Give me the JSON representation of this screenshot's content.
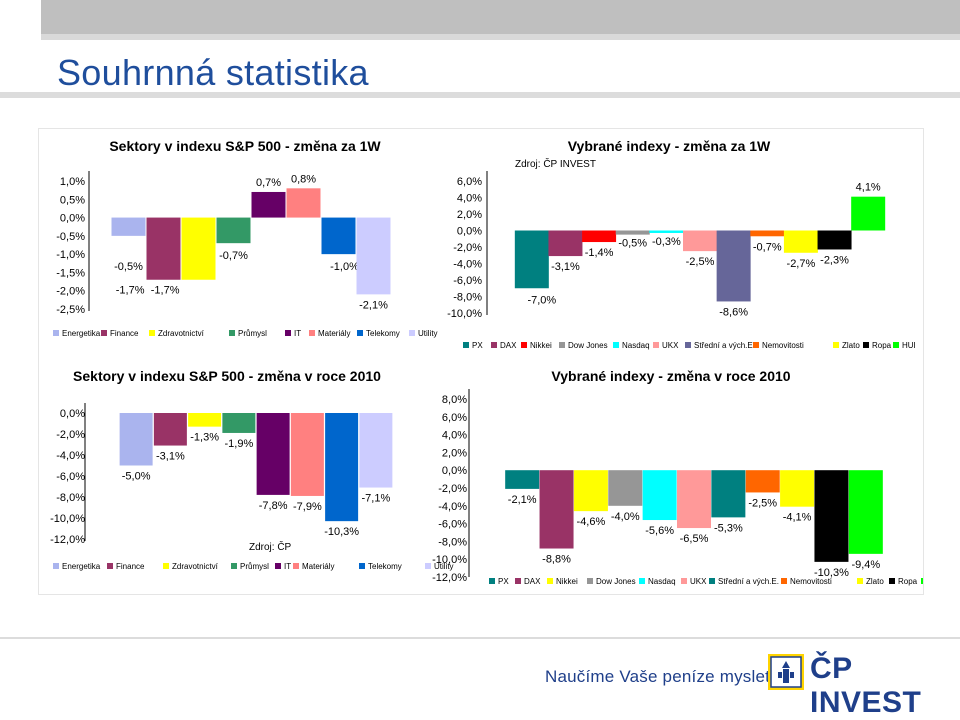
{
  "page": {
    "title": "Souhrnná statistika",
    "footer_slogan": "Naučíme Vaše peníze myslet",
    "logo_text": "ČP INVEST"
  },
  "chart_data": [
    {
      "id": "sp500-1w",
      "type": "bar",
      "title": "Sektory v indexu S&P 500 - změna za 1W",
      "categories": [
        "Energetika",
        "Finance",
        "Zdravotnictví",
        "Průmysl",
        "IT",
        "Materiály",
        "Telekomy",
        "Utility"
      ],
      "values": [
        -0.5,
        -1.7,
        -1.7,
        -0.7,
        0.7,
        0.8,
        -1.0,
        -2.1
      ],
      "labels": [
        "-0,5%",
        "-1,7%",
        "-1,7%",
        "-0,7%",
        "0,7%",
        "0,8%",
        "-1,0%",
        "-2,1%"
      ],
      "colors": [
        "#aab4ee",
        "#993366",
        "#ffff00",
        "#339966",
        "#660066",
        "#ff8080",
        "#0066cc",
        "#ccccff"
      ],
      "yticks": [
        "1,0%",
        "0,5%",
        "0,0%",
        "-0,5%",
        "-1,0%",
        "-1,5%",
        "-2,0%",
        "-2,5%"
      ],
      "ylim": [
        -2.5,
        1.0
      ],
      "legend": [
        "Energetika",
        "Finance",
        "Zdravotnictví",
        "Průmysl",
        "IT",
        "Materiály",
        "Telekomy",
        "Utility"
      ],
      "legend_position": "bottom"
    },
    {
      "id": "indexes-1w",
      "type": "bar",
      "title": "Vybrané indexy - změna za 1W",
      "subtitle": "Zdroj: ČP INVEST",
      "categories": [
        "PX",
        "DAX",
        "Nikkei",
        "Dow Jones",
        "Nasdaq",
        "UKX",
        "Střední a vých.E.",
        "Nemovitosti",
        "Zlato",
        "Ropa",
        "HUI"
      ],
      "values": [
        -7.0,
        -3.1,
        -1.4,
        -0.5,
        -0.3,
        -2.5,
        -8.6,
        -0.7,
        -2.7,
        -2.3,
        4.1
      ],
      "labels": [
        "-7,0%",
        "-3,1%",
        "-1,4%",
        "-0,5%",
        "-0,3%",
        "-2,5%",
        "-8,6%",
        "-0,7%",
        "-2,7%",
        "-2,3%",
        "4,1%"
      ],
      "colors": [
        "#008080",
        "#993366",
        "#ff0000",
        "#969696",
        "#00ffff",
        "#ff9999",
        "#666699",
        "#ff6600",
        "#ffff00",
        "#000000",
        "#00ff00"
      ],
      "yticks": [
        "6,0%",
        "4,0%",
        "2,0%",
        "0,0%",
        "-2,0%",
        "-4,0%",
        "-6,0%",
        "-8,0%",
        "-10,0%"
      ],
      "ylim": [
        -10.0,
        6.0
      ],
      "legend": [
        "PX",
        "DAX",
        "Nikkei",
        "Dow Jones",
        "Nasdaq",
        "UKX",
        "Střední a vých.E.",
        "Nemovitosti",
        "Zlato",
        "Ropa",
        "HUI"
      ],
      "legend_position": "bottom"
    },
    {
      "id": "sp500-2010",
      "type": "bar",
      "title": "Sektory v indexu S&P 500 - změna v roce 2010",
      "subtitle": "Zdroj: ČP",
      "categories": [
        "Energetika",
        "Finance",
        "Zdravotnictví",
        "Průmysl",
        "IT",
        "Materiály",
        "Telekomy",
        "Utility"
      ],
      "values": [
        -5.0,
        -3.1,
        -1.3,
        -1.9,
        -7.8,
        -7.9,
        -10.3,
        -7.1
      ],
      "labels": [
        "-5,0%",
        "-3,1%",
        "-1,3%",
        "-1,9%",
        "-7,8%",
        "-7,9%",
        "-10,3%",
        "-7,1%"
      ],
      "colors": [
        "#aab4ee",
        "#993366",
        "#ffff00",
        "#339966",
        "#660066",
        "#ff8080",
        "#0066cc",
        "#ccccff"
      ],
      "yticks": [
        "0,0%",
        "-2,0%",
        "-4,0%",
        "-6,0%",
        "-8,0%",
        "-10,0%",
        "-12,0%"
      ],
      "ylim": [
        -12.0,
        0.0
      ],
      "legend": [
        "Energetika",
        "Finance",
        "Zdravotnictví",
        "Průmysl",
        "IT",
        "Materiály",
        "Telekomy",
        "Utility"
      ],
      "legend_position": "bottom"
    },
    {
      "id": "indexes-2010",
      "type": "bar",
      "title": "Vybrané indexy - změna v roce 2010",
      "categories": [
        "PX",
        "DAX",
        "Nikkei",
        "Dow Jones",
        "Nasdaq",
        "UKX",
        "Střední a vých.E.",
        "Nemovitosti",
        "Zlato",
        "Ropa",
        "HUI"
      ],
      "values": [
        -2.1,
        -8.8,
        -4.6,
        -4.0,
        -5.6,
        -6.5,
        -5.3,
        -2.5,
        -4.1,
        -10.3,
        -9.4
      ],
      "labels": [
        "-2,1%",
        "-8,8%",
        "-4,6%",
        "-4,0%",
        "-5,6%",
        "-6,5%",
        "-5,3%",
        "-2,5%",
        "-4,1%",
        "-10,3%",
        "-9,4%"
      ],
      "colors": [
        "#008080",
        "#993366",
        "#ffff00",
        "#969696",
        "#00ffff",
        "#ff9999",
        "#008080",
        "#ff6600",
        "#ffff00",
        "#000000",
        "#00ff00"
      ],
      "yticks": [
        "8,0%",
        "6,0%",
        "4,0%",
        "2,0%",
        "0,0%",
        "-2,0%",
        "-4,0%",
        "-6,0%",
        "-8,0%",
        "-10,0%",
        "-12,0%"
      ],
      "ylim": [
        -12.0,
        8.0
      ],
      "legend": [
        "PX",
        "DAX",
        "Nikkei",
        "Dow Jones",
        "Nasdaq",
        "UKX",
        "Střední a vých.E.",
        "Nemovitosti",
        "Zlato",
        "Ropa",
        "HUI"
      ],
      "legend_position": "bottom"
    }
  ]
}
